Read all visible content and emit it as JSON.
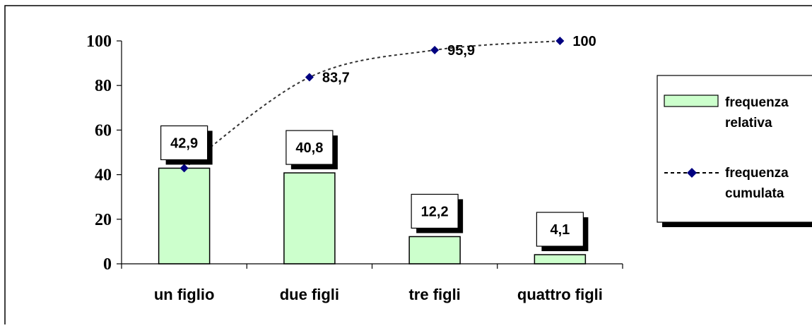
{
  "chart_data": {
    "type": "bar",
    "categories": [
      "un figlio",
      "due figli",
      "tre figli",
      "quattro figli"
    ],
    "series": [
      {
        "name": "frequenza relativa",
        "kind": "bar",
        "values": [
          42.9,
          40.8,
          12.2,
          4.1
        ],
        "labels": [
          "42,9",
          "40,8",
          "12,2",
          "4,1"
        ],
        "color": "#ccffcc"
      },
      {
        "name": "frequenza cumulata",
        "kind": "line",
        "values": [
          42.9,
          83.7,
          95.9,
          100
        ],
        "labels": [
          "",
          "83,7",
          "95,9",
          "100"
        ],
        "color": "#000080"
      }
    ],
    "yticks": [
      "0",
      "20",
      "40",
      "60",
      "80",
      "100"
    ],
    "ylim": [
      0,
      100
    ],
    "legend": {
      "position": "right",
      "entries": [
        {
          "lines": [
            "frequenza",
            "relativa"
          ]
        },
        {
          "lines": [
            "frequenza",
            "cumulata"
          ]
        }
      ]
    },
    "grid": false
  }
}
